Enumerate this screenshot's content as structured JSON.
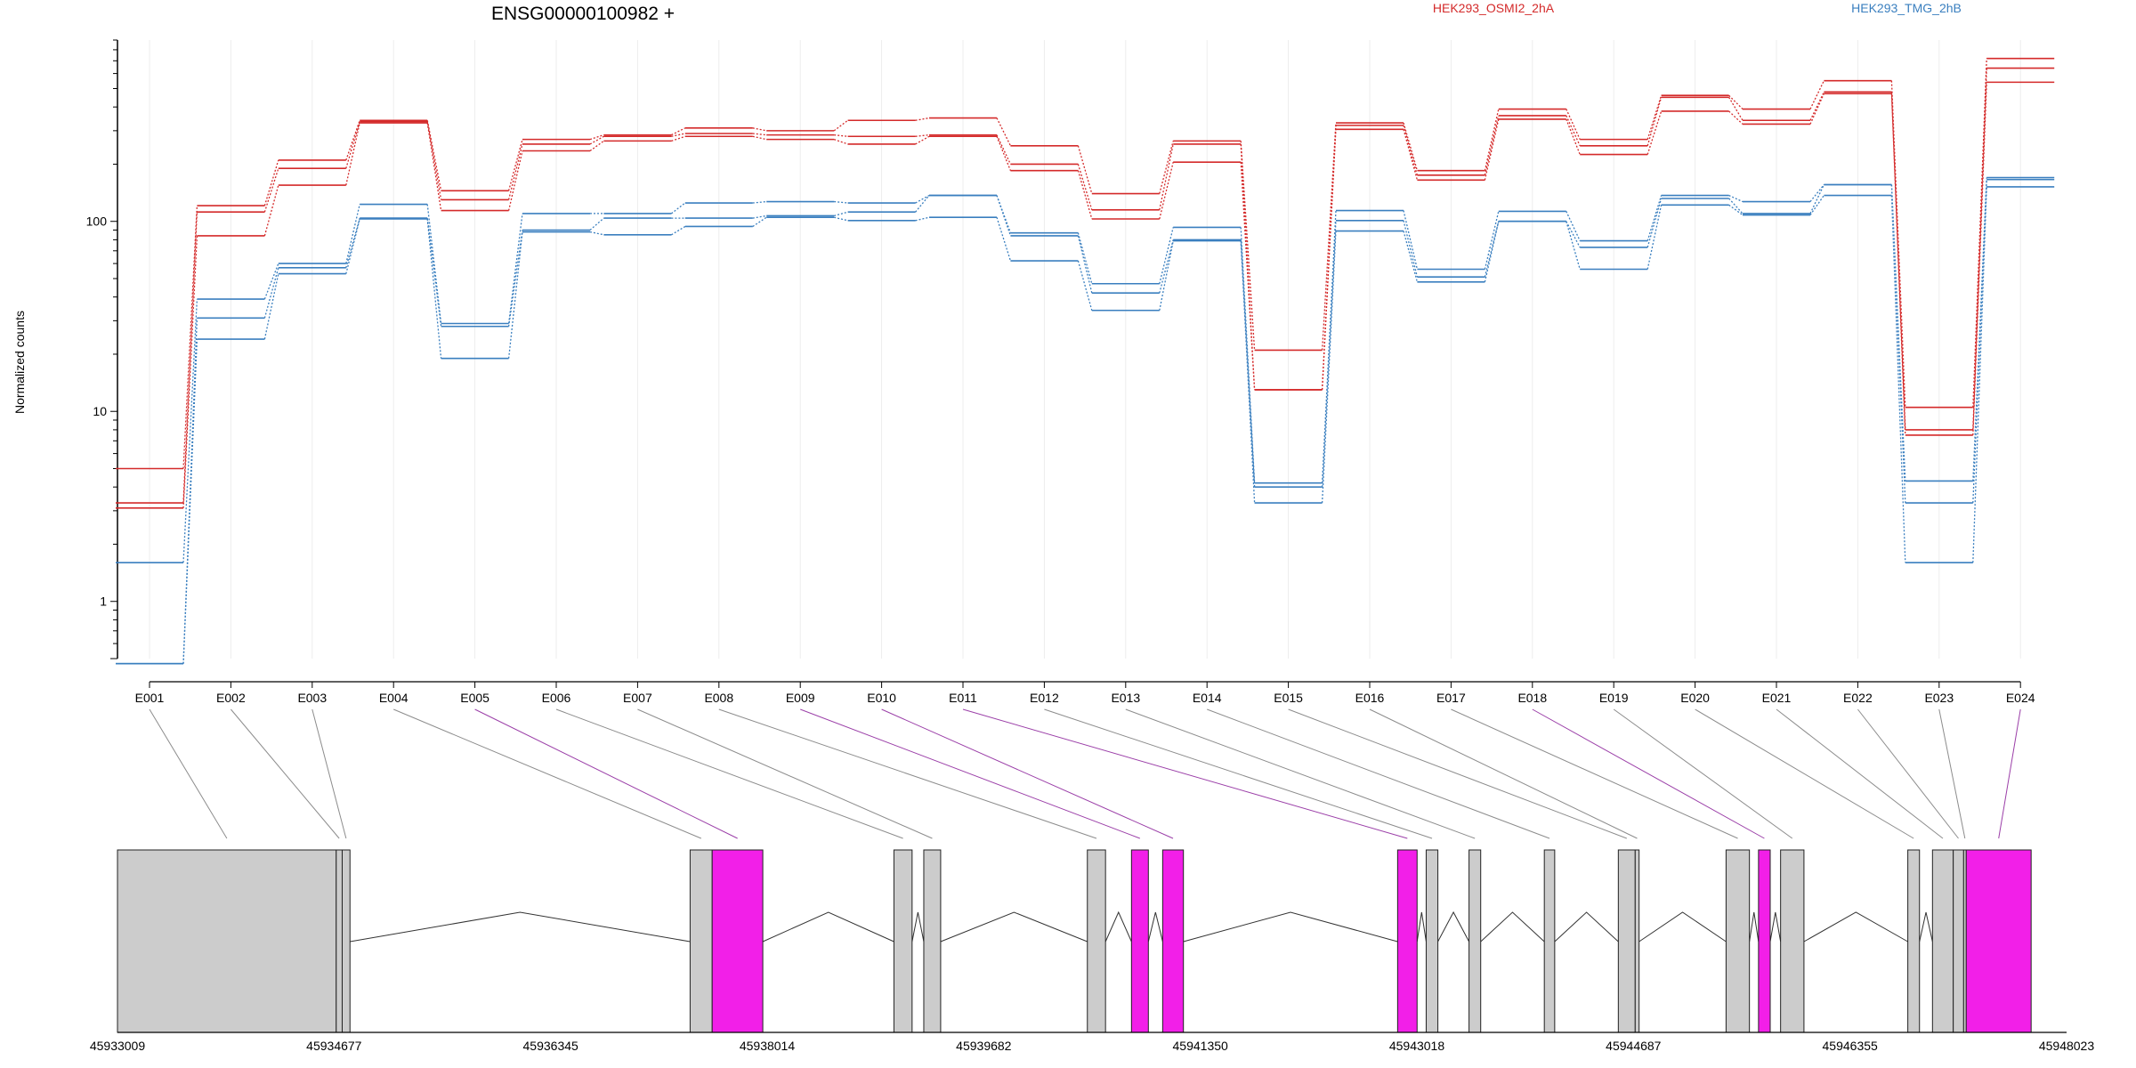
{
  "chart_data": {
    "type": "line",
    "title": "ENSG00000100982 +",
    "ylabel": "Normalized counts",
    "xlabel": "",
    "y_scale": "log",
    "ylim": [
      0.5,
      900
    ],
    "y_ticks": [
      "1",
      "10",
      "100"
    ],
    "y_tick_values": [
      1,
      10,
      100
    ],
    "grid": "vertical",
    "legend_position": "top",
    "categories": [
      "E001",
      "E002",
      "E003",
      "E004",
      "E005",
      "E006",
      "E007",
      "E008",
      "E009",
      "E010",
      "E011",
      "E012",
      "E013",
      "E014",
      "E015",
      "E016",
      "E017",
      "E018",
      "E019",
      "E020",
      "E021",
      "E022",
      "E023",
      "E024"
    ],
    "series": [
      {
        "name": "HEK293_OSMI2_2hA",
        "group": "OSMI2",
        "values": [
          5.0,
          121,
          210,
          340,
          145,
          270,
          285,
          310,
          300,
          340,
          350,
          250,
          140,
          265,
          21,
          330,
          185,
          390,
          270,
          460,
          390,
          550,
          10.5,
          720
        ]
      },
      {
        "name": "",
        "group": "OSMI2",
        "values": [
          3.3,
          112,
          190,
          335,
          130,
          255,
          280,
          290,
          285,
          280,
          285,
          200,
          115,
          255,
          13,
          320,
          175,
          360,
          250,
          450,
          340,
          480,
          8.0,
          640
        ]
      },
      {
        "name": "",
        "group": "OSMI2",
        "values": [
          3.1,
          84,
          155,
          330,
          114,
          235,
          265,
          280,
          270,
          255,
          280,
          185,
          103,
          205,
          13,
          305,
          165,
          345,
          225,
          380,
          325,
          470,
          7.5,
          540
        ]
      },
      {
        "name": "HEK293_TMG_2hB",
        "group": "TMG",
        "values": [
          1.6,
          39,
          60,
          123,
          29,
          110,
          110,
          125,
          127,
          125,
          137,
          87,
          47,
          93,
          4.2,
          114,
          56,
          113,
          79,
          137,
          127,
          156,
          4.3,
          170
        ]
      },
      {
        "name": "",
        "group": "TMG",
        "values": [
          0.47,
          31,
          57,
          104,
          28,
          90,
          104,
          104,
          107,
          112,
          137,
          84,
          42,
          80,
          4.0,
          101,
          51,
          100,
          73,
          132,
          110,
          156,
          3.3,
          166
        ]
      },
      {
        "name": "",
        "group": "TMG",
        "values": [
          0.47,
          24,
          53,
          103,
          19,
          88,
          85,
          94,
          105,
          101,
          105,
          62,
          34,
          79,
          3.3,
          89,
          48,
          100,
          56,
          122,
          108,
          137,
          1.6,
          152
        ]
      }
    ],
    "colors": {
      "OSMI2": "#d42a2a",
      "TMG": "#3a7fbf",
      "special_exon": "#f21fe8",
      "exon": "#cccccc",
      "guide": "#8c8c8c",
      "special_guide": "#9b3fa8"
    },
    "legend": [
      {
        "label": "HEK293_OSMI2_2hA",
        "color": "#d42a2a"
      },
      {
        "label": "HEK293_TMG_2hB",
        "color": "#3a7fbf"
      }
    ],
    "gene_model": {
      "genomic_range": [
        45933009,
        45948023
      ],
      "ticks": [
        "45933009",
        "45934677",
        "45936345",
        "45938014",
        "45939682",
        "45941350",
        "45943018",
        "45944687",
        "45946355",
        "45948023"
      ],
      "exons": [
        {
          "id": "E001",
          "start": 45933009,
          "end": 45934694,
          "special": false
        },
        {
          "id": "E002",
          "start": 45934694,
          "end": 45934740,
          "special": false
        },
        {
          "id": "E003",
          "start": 45934740,
          "end": 45934800,
          "special": false
        },
        {
          "id": "E004",
          "start": 45937420,
          "end": 45937590,
          "special": false
        },
        {
          "id": "E005",
          "start": 45937590,
          "end": 45937980,
          "special": true
        },
        {
          "id": "E006",
          "start": 45938990,
          "end": 45939130,
          "special": false
        },
        {
          "id": "E007",
          "start": 45939220,
          "end": 45939350,
          "special": false
        },
        {
          "id": "E008",
          "start": 45940480,
          "end": 45940620,
          "special": false
        },
        {
          "id": "E009",
          "start": 45940820,
          "end": 45940950,
          "special": true
        },
        {
          "id": "E010",
          "start": 45941060,
          "end": 45941220,
          "special": true
        },
        {
          "id": "E011",
          "start": 45942870,
          "end": 45943020,
          "special": true
        },
        {
          "id": "E012",
          "start": 45943090,
          "end": 45943180,
          "special": false
        },
        {
          "id": "E013",
          "start": 45943420,
          "end": 45943510,
          "special": false
        },
        {
          "id": "E014",
          "start": 45944000,
          "end": 45944080,
          "special": false
        },
        {
          "id": "E015",
          "start": 45944570,
          "end": 45944700,
          "special": false
        },
        {
          "id": "E016",
          "start": 45944700,
          "end": 45944730,
          "special": false
        },
        {
          "id": "E017",
          "start": 45945400,
          "end": 45945580,
          "special": false
        },
        {
          "id": "E018",
          "start": 45945650,
          "end": 45945740,
          "special": true
        },
        {
          "id": "E019",
          "start": 45945820,
          "end": 45946000,
          "special": false
        },
        {
          "id": "E020",
          "start": 45946800,
          "end": 45946890,
          "special": false
        },
        {
          "id": "E021",
          "start": 45946990,
          "end": 45947150,
          "special": false
        },
        {
          "id": "E022",
          "start": 45947150,
          "end": 45947230,
          "special": false
        },
        {
          "id": "E023",
          "start": 45947230,
          "end": 45947250,
          "special": false
        },
        {
          "id": "E024",
          "start": 45947250,
          "end": 45947750,
          "special": true
        }
      ]
    }
  }
}
